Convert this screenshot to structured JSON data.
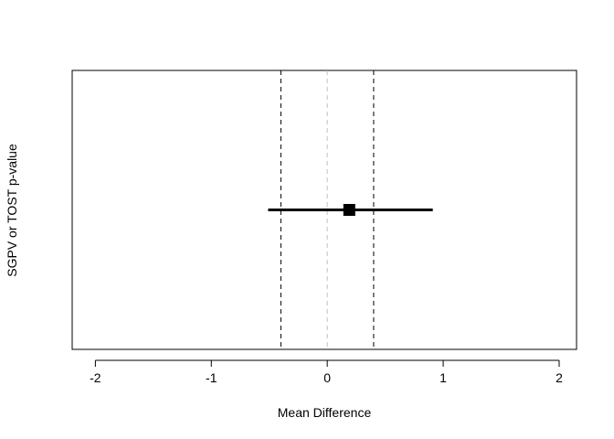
{
  "chart_data": {
    "type": "scatter",
    "title": "",
    "xlabel": "Mean Difference",
    "ylabel": "SGPV or TOST p-value",
    "xlim": [
      -2.2,
      2.15
    ],
    "ylim": [
      0,
      1
    ],
    "x_ticks": [
      -2,
      -1,
      0,
      1,
      2
    ],
    "x_tick_labels": [
      "-2",
      "-1",
      "0",
      "1",
      "2"
    ],
    "grid": false,
    "legend": "none",
    "null_line": {
      "x": 0,
      "color": "#bfbfbf",
      "style": "dashed"
    },
    "equivalence_bounds": {
      "lower": -0.4,
      "upper": 0.4,
      "color": "#000000",
      "style": "dashed"
    },
    "estimate": {
      "x": 0.19,
      "y": 0.5,
      "color": "#000000"
    },
    "interval": {
      "lower": -0.51,
      "upper": 0.91,
      "y": 0.5,
      "color": "#000000"
    }
  }
}
